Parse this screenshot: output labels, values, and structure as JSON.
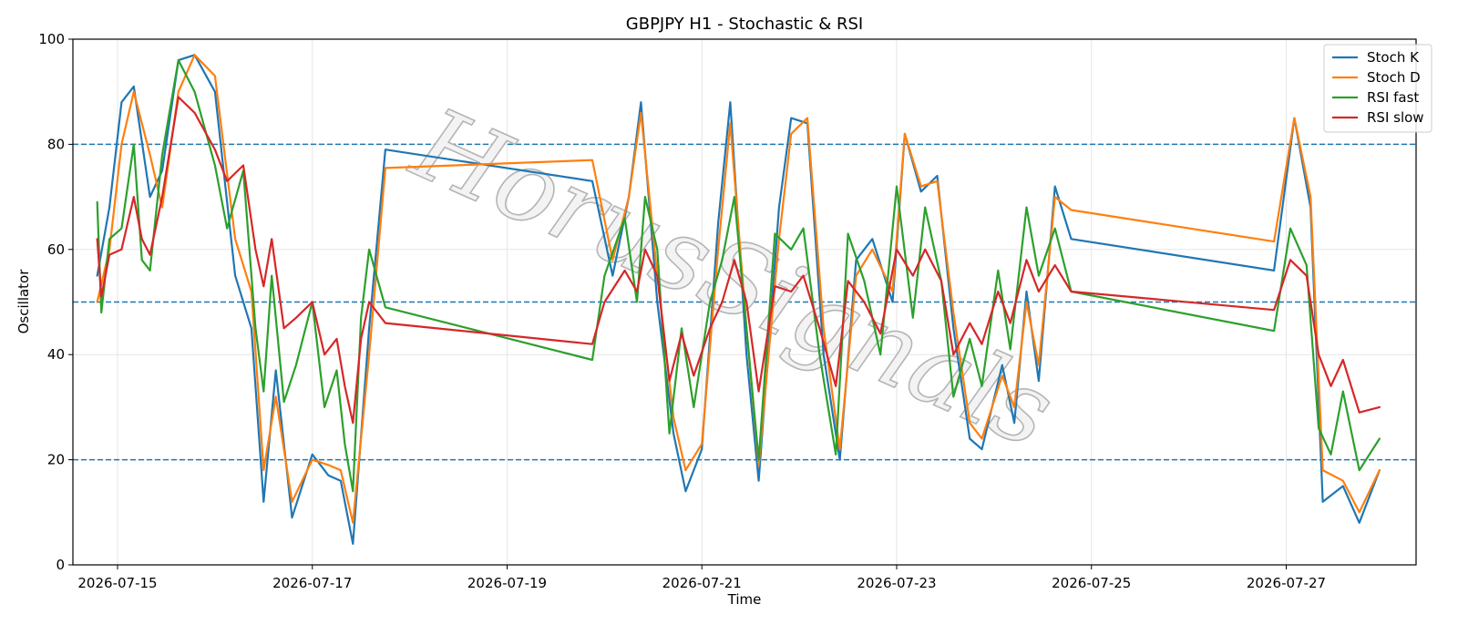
{
  "watermark": "HorusSignals",
  "chart_data": {
    "type": "line",
    "title": "GBPJPY H1 - Stochastic & RSI",
    "xlabel": "Time",
    "ylabel": "Oscillator",
    "ylim": [
      0,
      100
    ],
    "xlim": [
      "2026-07-14 13:00",
      "2026-07-28 08:00"
    ],
    "yticks": [
      0,
      20,
      40,
      60,
      80,
      100
    ],
    "xticks": [
      "2026-07-15",
      "2026-07-17",
      "2026-07-19",
      "2026-07-21",
      "2026-07-23",
      "2026-07-25",
      "2026-07-27"
    ],
    "hlines": [
      20,
      50,
      80
    ],
    "grid": true,
    "legend": "top-right",
    "series": [
      {
        "name": "Stoch K",
        "color": "#1f77b4",
        "points": [
          [
            "2026-07-14 19:00",
            55
          ],
          [
            "2026-07-14 22:00",
            68
          ],
          [
            "2026-07-15 01:00",
            88
          ],
          [
            "2026-07-15 04:00",
            91
          ],
          [
            "2026-07-15 08:00",
            70
          ],
          [
            "2026-07-15 11:00",
            75
          ],
          [
            "2026-07-15 15:00",
            96
          ],
          [
            "2026-07-15 19:00",
            97
          ],
          [
            "2026-07-16 00:00",
            90
          ],
          [
            "2026-07-16 05:00",
            55
          ],
          [
            "2026-07-16 09:00",
            45
          ],
          [
            "2026-07-16 12:00",
            12
          ],
          [
            "2026-07-16 15:00",
            37
          ],
          [
            "2026-07-16 19:00",
            9
          ],
          [
            "2026-07-17 00:00",
            21
          ],
          [
            "2026-07-17 04:00",
            17
          ],
          [
            "2026-07-17 07:00",
            16
          ],
          [
            "2026-07-17 10:00",
            4
          ],
          [
            "2026-07-17 14:00",
            45
          ],
          [
            "2026-07-17 18:00",
            79
          ],
          [
            "2026-07-19 21:00",
            73
          ],
          [
            "2026-07-20 02:00",
            55
          ],
          [
            "2026-07-20 06:00",
            70
          ],
          [
            "2026-07-20 09:00",
            88
          ],
          [
            "2026-07-20 13:00",
            50
          ],
          [
            "2026-07-20 17:00",
            25
          ],
          [
            "2026-07-20 20:00",
            14
          ],
          [
            "2026-07-21 00:00",
            22
          ],
          [
            "2026-07-21 04:00",
            65
          ],
          [
            "2026-07-21 07:00",
            88
          ],
          [
            "2026-07-21 11:00",
            40
          ],
          [
            "2026-07-21 14:00",
            16
          ],
          [
            "2026-07-21 19:00",
            68
          ],
          [
            "2026-07-21 22:00",
            85
          ],
          [
            "2026-07-22 02:00",
            84
          ],
          [
            "2026-07-22 06:00",
            40
          ],
          [
            "2026-07-22 10:00",
            20
          ],
          [
            "2026-07-22 14:00",
            58
          ],
          [
            "2026-07-22 18:00",
            62
          ],
          [
            "2026-07-22 23:00",
            50
          ],
          [
            "2026-07-23 02:00",
            82
          ],
          [
            "2026-07-23 06:00",
            71
          ],
          [
            "2026-07-23 10:00",
            74
          ],
          [
            "2026-07-23 14:00",
            45
          ],
          [
            "2026-07-23 18:00",
            24
          ],
          [
            "2026-07-23 21:00",
            22
          ],
          [
            "2026-07-24 02:00",
            38
          ],
          [
            "2026-07-24 05:00",
            27
          ],
          [
            "2026-07-24 08:00",
            52
          ],
          [
            "2026-07-24 11:00",
            35
          ],
          [
            "2026-07-24 15:00",
            72
          ],
          [
            "2026-07-24 19:00",
            62
          ],
          [
            "2026-07-26 21:00",
            56
          ],
          [
            "2026-07-27 02:00",
            85
          ],
          [
            "2026-07-27 06:00",
            68
          ],
          [
            "2026-07-27 09:00",
            12
          ],
          [
            "2026-07-27 14:00",
            15
          ],
          [
            "2026-07-27 18:00",
            8
          ],
          [
            "2026-07-27 23:00",
            18
          ]
        ]
      },
      {
        "name": "Stoch D",
        "color": "#ff7f0e",
        "points": [
          [
            "2026-07-14 19:00",
            50
          ],
          [
            "2026-07-14 22:00",
            60
          ],
          [
            "2026-07-15 01:00",
            80
          ],
          [
            "2026-07-15 04:00",
            90
          ],
          [
            "2026-07-15 08:00",
            78
          ],
          [
            "2026-07-15 11:00",
            68
          ],
          [
            "2026-07-15 15:00",
            90
          ],
          [
            "2026-07-15 19:00",
            97
          ],
          [
            "2026-07-16 00:00",
            93
          ],
          [
            "2026-07-16 05:00",
            62
          ],
          [
            "2026-07-16 09:00",
            52
          ],
          [
            "2026-07-16 12:00",
            18
          ],
          [
            "2026-07-16 15:00",
            32
          ],
          [
            "2026-07-16 19:00",
            12
          ],
          [
            "2026-07-17 00:00",
            20
          ],
          [
            "2026-07-17 04:00",
            19
          ],
          [
            "2026-07-17 07:00",
            18
          ],
          [
            "2026-07-17 10:00",
            8
          ],
          [
            "2026-07-17 14:00",
            40
          ],
          [
            "2026-07-17 18:00",
            75.5
          ],
          [
            "2026-07-19 21:00",
            77
          ],
          [
            "2026-07-20 02:00",
            58
          ],
          [
            "2026-07-20 06:00",
            70
          ],
          [
            "2026-07-20 09:00",
            86
          ],
          [
            "2026-07-20 13:00",
            55
          ],
          [
            "2026-07-20 17:00",
            28
          ],
          [
            "2026-07-20 20:00",
            18
          ],
          [
            "2026-07-21 00:00",
            23
          ],
          [
            "2026-07-21 04:00",
            60
          ],
          [
            "2026-07-21 07:00",
            84
          ],
          [
            "2026-07-21 11:00",
            45
          ],
          [
            "2026-07-21 14:00",
            19
          ],
          [
            "2026-07-21 19:00",
            62
          ],
          [
            "2026-07-21 22:00",
            82
          ],
          [
            "2026-07-22 02:00",
            85
          ],
          [
            "2026-07-22 06:00",
            45
          ],
          [
            "2026-07-22 10:00",
            22
          ],
          [
            "2026-07-22 14:00",
            55
          ],
          [
            "2026-07-22 18:00",
            60
          ],
          [
            "2026-07-22 23:00",
            52
          ],
          [
            "2026-07-23 02:00",
            82
          ],
          [
            "2026-07-23 06:00",
            72
          ],
          [
            "2026-07-23 10:00",
            73
          ],
          [
            "2026-07-23 14:00",
            48
          ],
          [
            "2026-07-23 18:00",
            27
          ],
          [
            "2026-07-23 21:00",
            24
          ],
          [
            "2026-07-24 02:00",
            36
          ],
          [
            "2026-07-24 05:00",
            30
          ],
          [
            "2026-07-24 08:00",
            50
          ],
          [
            "2026-07-24 11:00",
            38
          ],
          [
            "2026-07-24 15:00",
            70
          ],
          [
            "2026-07-24 19:00",
            67.5
          ],
          [
            "2026-07-26 21:00",
            61.5
          ],
          [
            "2026-07-27 02:00",
            85
          ],
          [
            "2026-07-27 06:00",
            70
          ],
          [
            "2026-07-27 09:00",
            18
          ],
          [
            "2026-07-27 14:00",
            16
          ],
          [
            "2026-07-27 18:00",
            10
          ],
          [
            "2026-07-27 23:00",
            18
          ]
        ]
      },
      {
        "name": "RSI fast",
        "color": "#2ca02c",
        "points": [
          [
            "2026-07-14 19:00",
            69
          ],
          [
            "2026-07-14 20:00",
            48
          ],
          [
            "2026-07-14 22:00",
            62
          ],
          [
            "2026-07-15 01:00",
            64
          ],
          [
            "2026-07-15 04:00",
            80
          ],
          [
            "2026-07-15 06:00",
            58
          ],
          [
            "2026-07-15 08:00",
            56
          ],
          [
            "2026-07-15 11:00",
            78
          ],
          [
            "2026-07-15 15:00",
            96
          ],
          [
            "2026-07-15 19:00",
            90
          ],
          [
            "2026-07-16 00:00",
            76
          ],
          [
            "2026-07-16 03:00",
            64
          ],
          [
            "2026-07-16 07:00",
            75
          ],
          [
            "2026-07-16 10:00",
            45
          ],
          [
            "2026-07-16 12:00",
            33
          ],
          [
            "2026-07-16 14:00",
            55
          ],
          [
            "2026-07-16 17:00",
            31
          ],
          [
            "2026-07-16 20:00",
            38
          ],
          [
            "2026-07-17 00:00",
            50
          ],
          [
            "2026-07-17 03:00",
            30
          ],
          [
            "2026-07-17 06:00",
            37
          ],
          [
            "2026-07-17 08:00",
            23
          ],
          [
            "2026-07-17 10:00",
            14
          ],
          [
            "2026-07-17 12:00",
            47
          ],
          [
            "2026-07-17 14:00",
            60
          ],
          [
            "2026-07-17 18:00",
            49
          ],
          [
            "2026-07-19 21:00",
            39
          ],
          [
            "2026-07-20 00:00",
            55
          ],
          [
            "2026-07-20 05:00",
            66
          ],
          [
            "2026-07-20 08:00",
            50
          ],
          [
            "2026-07-20 10:00",
            70
          ],
          [
            "2026-07-20 13:00",
            60
          ],
          [
            "2026-07-20 16:00",
            25
          ],
          [
            "2026-07-20 19:00",
            45
          ],
          [
            "2026-07-20 22:00",
            30
          ],
          [
            "2026-07-21 02:00",
            50
          ],
          [
            "2026-07-21 05:00",
            58
          ],
          [
            "2026-07-21 08:00",
            70
          ],
          [
            "2026-07-21 11:00",
            45
          ],
          [
            "2026-07-21 14:00",
            20
          ],
          [
            "2026-07-21 18:00",
            63
          ],
          [
            "2026-07-21 22:00",
            60
          ],
          [
            "2026-07-22 01:00",
            64
          ],
          [
            "2026-07-22 05:00",
            40
          ],
          [
            "2026-07-22 09:00",
            21
          ],
          [
            "2026-07-22 12:00",
            63
          ],
          [
            "2026-07-22 16:00",
            54
          ],
          [
            "2026-07-22 20:00",
            40
          ],
          [
            "2026-07-23 00:00",
            72
          ],
          [
            "2026-07-23 04:00",
            47
          ],
          [
            "2026-07-23 07:00",
            68
          ],
          [
            "2026-07-23 11:00",
            54
          ],
          [
            "2026-07-23 14:00",
            32
          ],
          [
            "2026-07-23 18:00",
            43
          ],
          [
            "2026-07-23 21:00",
            34
          ],
          [
            "2026-07-24 01:00",
            56
          ],
          [
            "2026-07-24 04:00",
            41
          ],
          [
            "2026-07-24 08:00",
            68
          ],
          [
            "2026-07-24 11:00",
            55
          ],
          [
            "2026-07-24 15:00",
            64
          ],
          [
            "2026-07-24 19:00",
            52
          ],
          [
            "2026-07-26 21:00",
            44.5
          ],
          [
            "2026-07-27 01:00",
            64
          ],
          [
            "2026-07-27 05:00",
            57
          ],
          [
            "2026-07-27 08:00",
            26
          ],
          [
            "2026-07-27 11:00",
            21
          ],
          [
            "2026-07-27 14:00",
            33
          ],
          [
            "2026-07-27 18:00",
            18
          ],
          [
            "2026-07-27 23:00",
            24
          ]
        ]
      },
      {
        "name": "RSI slow",
        "color": "#d62728",
        "points": [
          [
            "2026-07-14 19:00",
            62
          ],
          [
            "2026-07-14 20:00",
            51
          ],
          [
            "2026-07-14 22:00",
            59
          ],
          [
            "2026-07-15 01:00",
            60
          ],
          [
            "2026-07-15 04:00",
            70
          ],
          [
            "2026-07-15 06:00",
            62
          ],
          [
            "2026-07-15 08:00",
            59
          ],
          [
            "2026-07-15 11:00",
            70
          ],
          [
            "2026-07-15 15:00",
            89
          ],
          [
            "2026-07-15 19:00",
            86
          ],
          [
            "2026-07-16 00:00",
            79
          ],
          [
            "2026-07-16 03:00",
            73
          ],
          [
            "2026-07-16 07:00",
            76
          ],
          [
            "2026-07-16 10:00",
            60
          ],
          [
            "2026-07-16 12:00",
            53
          ],
          [
            "2026-07-16 14:00",
            62
          ],
          [
            "2026-07-16 17:00",
            45
          ],
          [
            "2026-07-16 20:00",
            47
          ],
          [
            "2026-07-17 00:00",
            50
          ],
          [
            "2026-07-17 03:00",
            40
          ],
          [
            "2026-07-17 06:00",
            43
          ],
          [
            "2026-07-17 08:00",
            34
          ],
          [
            "2026-07-17 10:00",
            27
          ],
          [
            "2026-07-17 12:00",
            43
          ],
          [
            "2026-07-17 14:00",
            50
          ],
          [
            "2026-07-17 18:00",
            46
          ],
          [
            "2026-07-19 21:00",
            42
          ],
          [
            "2026-07-20 00:00",
            50
          ],
          [
            "2026-07-20 05:00",
            56
          ],
          [
            "2026-07-20 08:00",
            52
          ],
          [
            "2026-07-20 10:00",
            60
          ],
          [
            "2026-07-20 13:00",
            55
          ],
          [
            "2026-07-20 16:00",
            35
          ],
          [
            "2026-07-20 19:00",
            44
          ],
          [
            "2026-07-20 22:00",
            36
          ],
          [
            "2026-07-21 02:00",
            45
          ],
          [
            "2026-07-21 05:00",
            50
          ],
          [
            "2026-07-21 08:00",
            58
          ],
          [
            "2026-07-21 11:00",
            50
          ],
          [
            "2026-07-21 14:00",
            33
          ],
          [
            "2026-07-21 18:00",
            53
          ],
          [
            "2026-07-21 22:00",
            52
          ],
          [
            "2026-07-22 01:00",
            55
          ],
          [
            "2026-07-22 05:00",
            45
          ],
          [
            "2026-07-22 09:00",
            34
          ],
          [
            "2026-07-22 12:00",
            54
          ],
          [
            "2026-07-22 16:00",
            50
          ],
          [
            "2026-07-22 20:00",
            44
          ],
          [
            "2026-07-23 00:00",
            60
          ],
          [
            "2026-07-23 04:00",
            55
          ],
          [
            "2026-07-23 07:00",
            60
          ],
          [
            "2026-07-23 11:00",
            54
          ],
          [
            "2026-07-23 14:00",
            40
          ],
          [
            "2026-07-23 18:00",
            46
          ],
          [
            "2026-07-23 21:00",
            42
          ],
          [
            "2026-07-24 01:00",
            52
          ],
          [
            "2026-07-24 04:00",
            46
          ],
          [
            "2026-07-24 08:00",
            58
          ],
          [
            "2026-07-24 11:00",
            52
          ],
          [
            "2026-07-24 15:00",
            57
          ],
          [
            "2026-07-24 19:00",
            52
          ],
          [
            "2026-07-26 21:00",
            48.5
          ],
          [
            "2026-07-27 01:00",
            58
          ],
          [
            "2026-07-27 05:00",
            55
          ],
          [
            "2026-07-27 08:00",
            40
          ],
          [
            "2026-07-27 11:00",
            34
          ],
          [
            "2026-07-27 14:00",
            39
          ],
          [
            "2026-07-27 18:00",
            29
          ],
          [
            "2026-07-27 23:00",
            30
          ]
        ]
      }
    ]
  }
}
